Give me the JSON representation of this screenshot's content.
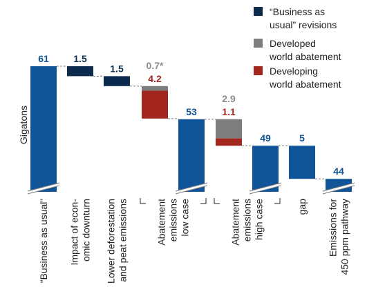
{
  "chart_data": {
    "type": "bar",
    "subtype": "waterfall",
    "ylabel": "Gigatons",
    "axis_break": true,
    "colors": {
      "bau": "#0f5597",
      "bau_revision": "#0c2a4e",
      "developed": "#7d7d7d",
      "developing": "#a3261f",
      "value_gray": "#8a8a8a",
      "connector": "#777777"
    },
    "legend": [
      {
        "color_key": "bau_revision",
        "lines": [
          "“Business as",
          "usual” revisions"
        ]
      },
      {
        "color_key": "developed",
        "lines": [
          "Developed",
          "world abatement"
        ]
      },
      {
        "color_key": "developing",
        "lines": [
          "Developing",
          "world abatement"
        ]
      }
    ],
    "bars": [
      {
        "id": "bau",
        "label_lines": [
          "“Business as usual”"
        ],
        "kind": "total",
        "value": 61,
        "value_label": "61"
      },
      {
        "id": "downturn",
        "label_lines": [
          "Impact of econ-",
          "omic downturn"
        ],
        "kind": "delta",
        "value": -1.5,
        "value_label": "1.5"
      },
      {
        "id": "deforestation",
        "label_lines": [
          "Lower deforestation",
          "and peat emissions"
        ],
        "kind": "delta",
        "value": -1.5,
        "value_label": "1.5"
      },
      {
        "id": "abatement_low",
        "label_lines": [
          "Abatement",
          "emissions",
          "low case"
        ],
        "kind": "stacked_delta",
        "bracket": true,
        "developed": 0.7,
        "developed_label": "0.7*",
        "developing": 4.2,
        "developing_label": "4.2"
      },
      {
        "id": "low_case",
        "label_lines": [],
        "kind": "total",
        "value": 53,
        "value_label": "53"
      },
      {
        "id": "abatement_high",
        "label_lines": [
          "Abatement",
          "emissions",
          "high case"
        ],
        "kind": "stacked_delta",
        "bracket": true,
        "developed": 2.9,
        "developed_label": "2.9",
        "developing": 1.1,
        "developing_label": "1.1"
      },
      {
        "id": "high_case",
        "label_lines": [],
        "kind": "total",
        "value": 49,
        "value_label": "49"
      },
      {
        "id": "gap",
        "label_lines": [
          "gap"
        ],
        "kind": "delta",
        "value": -5,
        "value_label": "5"
      },
      {
        "id": "pathway",
        "label_lines": [
          "Emissions for",
          "450 ppm pathway"
        ],
        "kind": "total",
        "value": 44,
        "value_label": "44"
      }
    ]
  }
}
